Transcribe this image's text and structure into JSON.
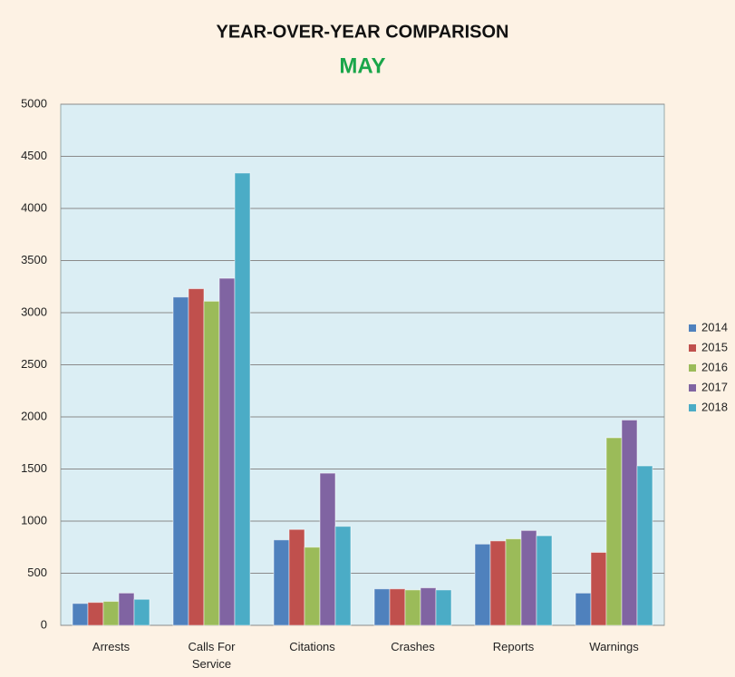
{
  "chart_data": {
    "type": "bar",
    "title": "YEAR-OVER-YEAR COMPARISON",
    "subtitle": "MAY",
    "categories": [
      "Arrests",
      "Calls For Service",
      "Citations",
      "Crashes",
      "Reports",
      "Warnings"
    ],
    "series": [
      {
        "name": "2014",
        "color": "#4f81bd",
        "values": [
          210,
          3150,
          820,
          350,
          780,
          310
        ]
      },
      {
        "name": "2015",
        "color": "#c0504d",
        "values": [
          220,
          3230,
          920,
          350,
          810,
          700
        ]
      },
      {
        "name": "2016",
        "color": "#9bbb59",
        "values": [
          230,
          3110,
          750,
          340,
          830,
          1800
        ]
      },
      {
        "name": "2017",
        "color": "#8064a2",
        "values": [
          310,
          3330,
          1460,
          360,
          910,
          1970
        ]
      },
      {
        "name": "2018",
        "color": "#4bacc6",
        "values": [
          250,
          4340,
          950,
          340,
          860,
          1530
        ]
      }
    ],
    "ylim": [
      0,
      5000
    ],
    "yticks": [
      0,
      500,
      1000,
      1500,
      2000,
      2500,
      3000,
      3500,
      4000,
      4500,
      5000
    ],
    "grid": true,
    "legend": "right"
  }
}
